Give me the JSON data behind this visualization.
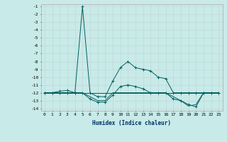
{
  "xlabel": "Humidex (Indice chaleur)",
  "ylabel": "",
  "background_color": "#c8eae8",
  "grid_color": "#d0e8e8",
  "line_color": "#006060",
  "xlim": [
    -0.5,
    23.5
  ],
  "ylim": [
    -14.3,
    -0.7
  ],
  "xticks": [
    0,
    1,
    2,
    3,
    4,
    5,
    6,
    7,
    8,
    9,
    10,
    11,
    12,
    13,
    14,
    15,
    16,
    17,
    18,
    19,
    20,
    21,
    22,
    23
  ],
  "yticks": [
    -1,
    -2,
    -3,
    -4,
    -5,
    -6,
    -7,
    -8,
    -9,
    -10,
    -11,
    -12,
    -13,
    -14
  ],
  "curves": [
    {
      "x": [
        0,
        1,
        2,
        3,
        4,
        5,
        6,
        7,
        8,
        9,
        10,
        11,
        12,
        13,
        14,
        15,
        16,
        17,
        18,
        19,
        20,
        21,
        22,
        23
      ],
      "y": [
        -12,
        -12,
        -11.8,
        -11.7,
        -12,
        -12,
        -12.8,
        -13.2,
        -13.2,
        -12.3,
        -11.2,
        -11.0,
        -11.2,
        -11.5,
        -12,
        -12,
        -12,
        -12.8,
        -13,
        -13.5,
        -13.8,
        -12,
        -12,
        -12
      ],
      "marker": "+"
    },
    {
      "x": [
        0,
        1,
        2,
        3,
        4,
        5,
        6,
        7,
        8,
        9,
        10,
        11,
        12,
        13,
        14,
        15,
        16,
        17,
        18,
        19,
        20,
        21,
        22,
        23
      ],
      "y": [
        -12,
        -12,
        -12,
        -12,
        -12,
        -1,
        -12,
        -12.5,
        -12.5,
        -10.5,
        -8.8,
        -8,
        -8.8,
        -9,
        -9.2,
        -10,
        -10.2,
        -12,
        -12,
        -12,
        -12,
        -12,
        -12,
        -12
      ],
      "marker": "+"
    },
    {
      "x": [
        0,
        1,
        2,
        3,
        4,
        5,
        6,
        7,
        8,
        9,
        10,
        11,
        12,
        13,
        14,
        15,
        16,
        17,
        18,
        19,
        20,
        21,
        22,
        23
      ],
      "y": [
        -12,
        -12,
        -12,
        -12,
        -12,
        -12,
        -12,
        -12,
        -12,
        -12,
        -12,
        -12,
        -12,
        -12,
        -12,
        -12,
        -12,
        -12,
        -12,
        -12,
        -12,
        -12,
        -12,
        -12
      ],
      "marker": null
    },
    {
      "x": [
        0,
        1,
        2,
        3,
        4,
        5,
        6,
        7,
        8,
        9,
        10,
        11,
        12,
        13,
        14,
        15,
        16,
        17,
        18,
        19,
        20,
        21,
        22,
        23
      ],
      "y": [
        -12,
        -12,
        -12,
        -12,
        -12,
        -12,
        -12.5,
        -13,
        -13,
        -12,
        -12,
        -12,
        -12,
        -12,
        -12,
        -12,
        -12,
        -12.5,
        -13,
        -13.7,
        -13.5,
        -12,
        -12,
        -12
      ],
      "marker": null
    }
  ]
}
